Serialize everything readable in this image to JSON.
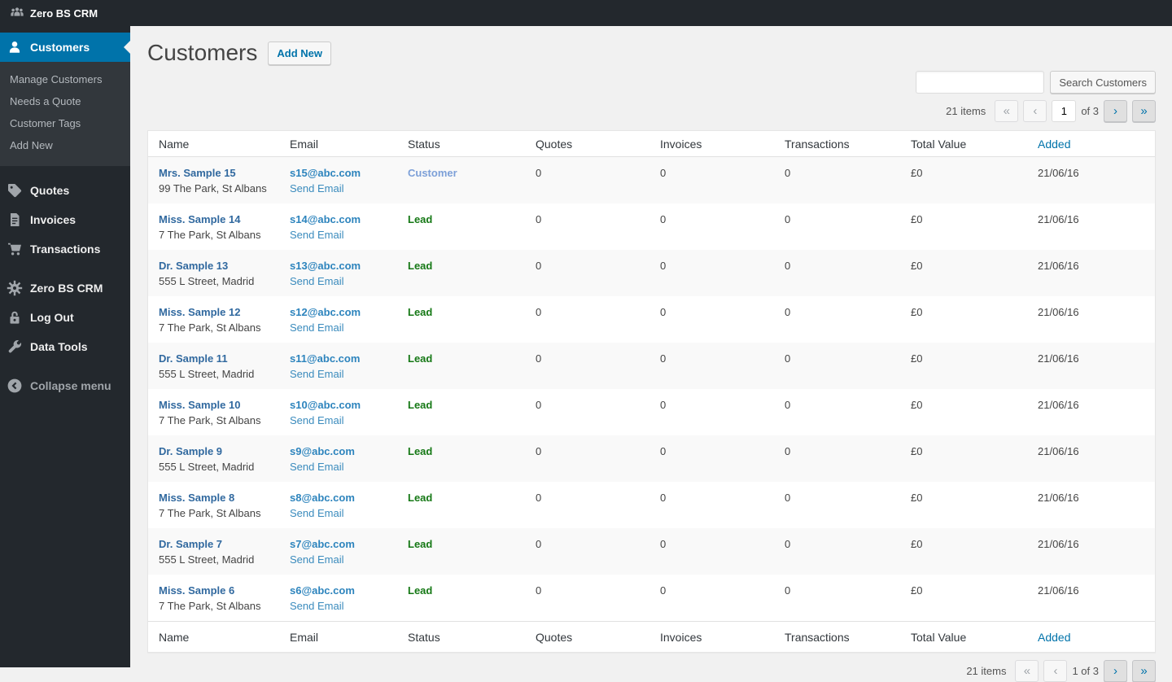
{
  "admin_bar": {
    "brand": "Zero BS CRM"
  },
  "sidebar": {
    "customers_label": "Customers",
    "submenu": [
      "Manage Customers",
      "Needs a Quote",
      "Customer Tags",
      "Add New"
    ],
    "quotes_label": "Quotes",
    "invoices_label": "Invoices",
    "transactions_label": "Transactions",
    "settings_label": "Zero BS CRM",
    "logout_label": "Log Out",
    "datatools_label": "Data Tools",
    "collapse_label": "Collapse menu"
  },
  "header": {
    "title": "Customers",
    "add_new": "Add New"
  },
  "search": {
    "value": "",
    "placeholder": "",
    "button": "Search Customers"
  },
  "pagination_top": {
    "items": "21 items",
    "first": "«",
    "prev": "‹",
    "current_page": "1",
    "of": "of 3",
    "next": "›",
    "last": "»"
  },
  "pagination_bottom": {
    "items": "21 items",
    "first": "«",
    "prev": "‹",
    "range": "1 of 3",
    "next": "›",
    "last": "»"
  },
  "table": {
    "headers": [
      "Name",
      "Email",
      "Status",
      "Quotes",
      "Invoices",
      "Transactions",
      "Total Value",
      "Added"
    ],
    "sorted_header": "Added",
    "send_email_label": "Send Email",
    "status_colors": {
      "Customer": "#7da0d8",
      "Lead": "#157815"
    },
    "rows": [
      {
        "name": "Mrs. Sample 15",
        "address": "99 The Park, St Albans",
        "email": "s15@abc.com",
        "status": "Customer",
        "quotes": "0",
        "invoices": "0",
        "transactions": "0",
        "total_value": "£0",
        "added": "21/06/16"
      },
      {
        "name": "Miss. Sample 14",
        "address": "7 The Park, St Albans",
        "email": "s14@abc.com",
        "status": "Lead",
        "quotes": "0",
        "invoices": "0",
        "transactions": "0",
        "total_value": "£0",
        "added": "21/06/16"
      },
      {
        "name": "Dr. Sample 13",
        "address": "555 L Street, Madrid",
        "email": "s13@abc.com",
        "status": "Lead",
        "quotes": "0",
        "invoices": "0",
        "transactions": "0",
        "total_value": "£0",
        "added": "21/06/16"
      },
      {
        "name": "Miss. Sample 12",
        "address": "7 The Park, St Albans",
        "email": "s12@abc.com",
        "status": "Lead",
        "quotes": "0",
        "invoices": "0",
        "transactions": "0",
        "total_value": "£0",
        "added": "21/06/16"
      },
      {
        "name": "Dr. Sample 11",
        "address": "555 L Street, Madrid",
        "email": "s11@abc.com",
        "status": "Lead",
        "quotes": "0",
        "invoices": "0",
        "transactions": "0",
        "total_value": "£0",
        "added": "21/06/16"
      },
      {
        "name": "Miss. Sample 10",
        "address": "7 The Park, St Albans",
        "email": "s10@abc.com",
        "status": "Lead",
        "quotes": "0",
        "invoices": "0",
        "transactions": "0",
        "total_value": "£0",
        "added": "21/06/16"
      },
      {
        "name": "Dr. Sample 9",
        "address": "555 L Street, Madrid",
        "email": "s9@abc.com",
        "status": "Lead",
        "quotes": "0",
        "invoices": "0",
        "transactions": "0",
        "total_value": "£0",
        "added": "21/06/16"
      },
      {
        "name": "Miss. Sample 8",
        "address": "7 The Park, St Albans",
        "email": "s8@abc.com",
        "status": "Lead",
        "quotes": "0",
        "invoices": "0",
        "transactions": "0",
        "total_value": "£0",
        "added": "21/06/16"
      },
      {
        "name": "Dr. Sample 7",
        "address": "555 L Street, Madrid",
        "email": "s7@abc.com",
        "status": "Lead",
        "quotes": "0",
        "invoices": "0",
        "transactions": "0",
        "total_value": "£0",
        "added": "21/06/16"
      },
      {
        "name": "Miss. Sample 6",
        "address": "7 The Park, St Albans",
        "email": "s6@abc.com",
        "status": "Lead",
        "quotes": "0",
        "invoices": "0",
        "transactions": "0",
        "total_value": "£0",
        "added": "21/06/16"
      }
    ]
  },
  "colors": {
    "accent": "#0073aa",
    "name_link": "#31699f",
    "email_link": "#2d84bd",
    "send_email_link": "#3a8bbd"
  }
}
